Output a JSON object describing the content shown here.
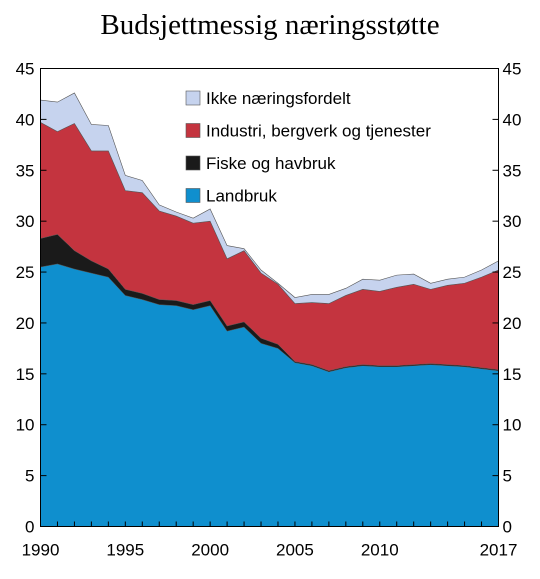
{
  "chart_data": {
    "type": "area",
    "stacked": true,
    "title": "Budsjettmessig næringsstøtte",
    "xlabel": "",
    "ylabel": "",
    "x": [
      1990,
      1991,
      1992,
      1993,
      1994,
      1995,
      1996,
      1997,
      1998,
      1999,
      2000,
      2001,
      2002,
      2003,
      2004,
      2005,
      2006,
      2007,
      2008,
      2009,
      2010,
      2011,
      2012,
      2013,
      2014,
      2015,
      2016,
      2017
    ],
    "x_tick_labels": [
      "1990",
      "1995",
      "2000",
      "2005",
      "2010",
      "2017"
    ],
    "x_tick_values": [
      1990,
      1995,
      2000,
      2005,
      2010,
      2017
    ],
    "ylim": [
      0,
      45
    ],
    "y_tick_labels": [
      "0",
      "5",
      "10",
      "15",
      "20",
      "25",
      "30",
      "35",
      "40",
      "45"
    ],
    "y_tick_values": [
      0,
      5,
      10,
      15,
      20,
      25,
      30,
      35,
      40,
      45
    ],
    "legend_position": "top-center",
    "series": [
      {
        "name": "Landbruk",
        "color": "#0f8fce",
        "values": [
          25.5,
          25.8,
          25.3,
          24.9,
          24.5,
          22.7,
          22.3,
          21.8,
          21.7,
          21.3,
          21.7,
          19.2,
          19.6,
          18.0,
          17.5,
          16.1,
          15.8,
          15.2,
          15.6,
          15.8,
          15.7,
          15.7,
          15.8,
          15.9,
          15.8,
          15.7,
          15.5,
          15.3
        ]
      },
      {
        "name": "Fiske og havbruk",
        "color": "#1a1a1a",
        "values": [
          2.8,
          2.9,
          1.8,
          1.2,
          0.8,
          0.6,
          0.6,
          0.5,
          0.5,
          0.5,
          0.5,
          0.5,
          0.5,
          0.5,
          0.4,
          0.1,
          0.1,
          0.1,
          0.1,
          0.1,
          0.1,
          0.1,
          0.1,
          0.1,
          0.1,
          0.1,
          0.1,
          0.1
        ]
      },
      {
        "name": "Industri, bergverk og tjenester",
        "color": "#c4343f",
        "values": [
          11.4,
          10.1,
          12.5,
          10.8,
          11.6,
          9.7,
          9.9,
          8.7,
          8.3,
          8.0,
          7.8,
          6.6,
          7.0,
          6.4,
          5.9,
          5.7,
          6.1,
          6.6,
          7.0,
          7.4,
          7.3,
          7.7,
          7.9,
          7.3,
          7.8,
          8.1,
          8.9,
          9.8
        ]
      },
      {
        "name": "Ikke næringsfordelt",
        "color": "#c6d3ee",
        "values": [
          2.2,
          2.9,
          3.0,
          2.6,
          2.5,
          1.5,
          1.2,
          0.6,
          0.4,
          0.5,
          1.2,
          1.3,
          0.2,
          0.3,
          0.1,
          0.6,
          0.8,
          0.9,
          0.7,
          1.0,
          1.1,
          1.2,
          1.0,
          0.6,
          0.6,
          0.6,
          0.7,
          0.9
        ]
      }
    ],
    "legend_order": [
      "Ikke næringsfordelt",
      "Industri, bergverk og tjenester",
      "Fiske og havbruk",
      "Landbruk"
    ]
  }
}
